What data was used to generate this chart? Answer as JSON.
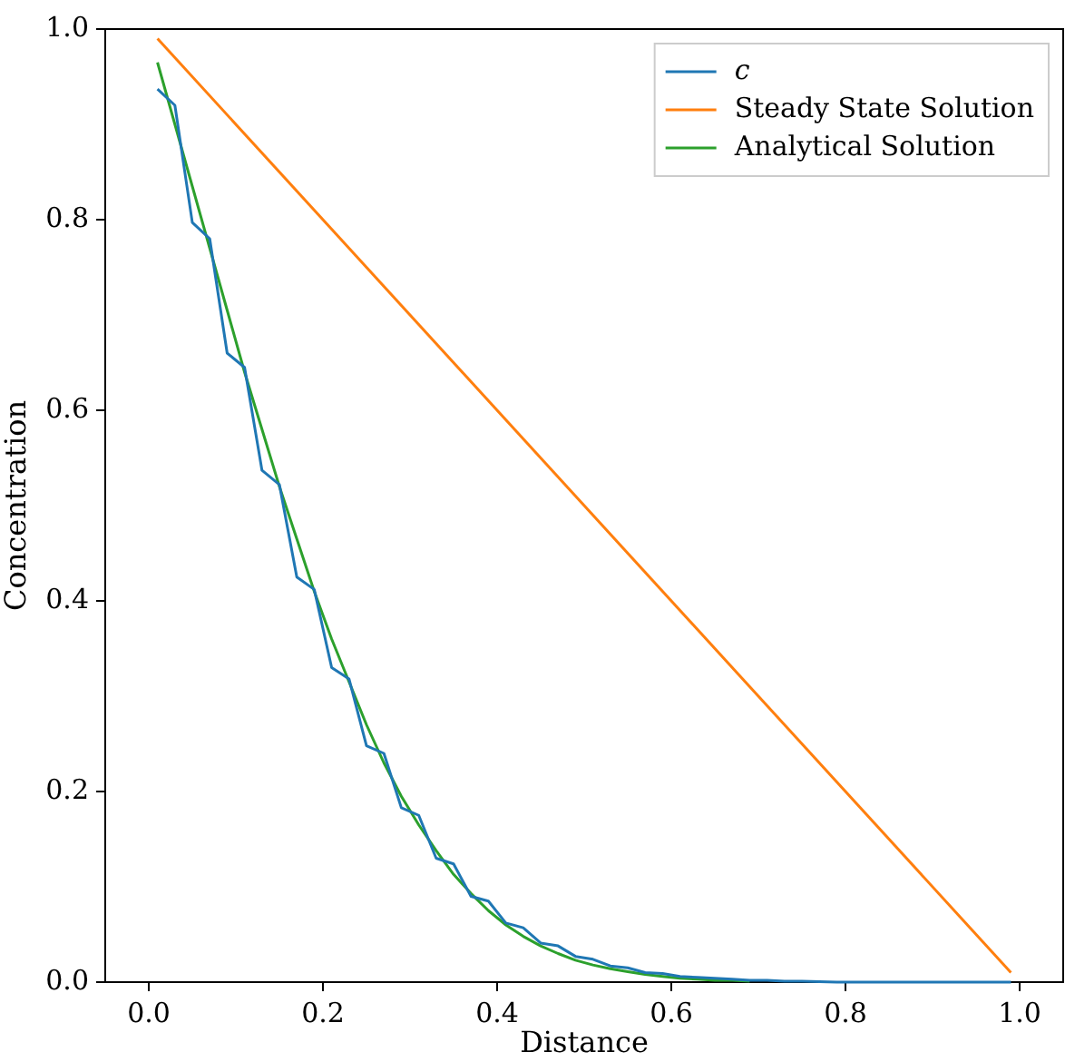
{
  "chart_data": {
    "type": "line",
    "xlabel": "Distance",
    "ylabel": "Concentration",
    "xlim": [
      -0.05,
      1.05
    ],
    "ylim": [
      0,
      1.0
    ],
    "xticks": [
      {
        "value": 0,
        "label": "0.0"
      },
      {
        "value": 0.2,
        "label": "0.2"
      },
      {
        "value": 0.4,
        "label": "0.4"
      },
      {
        "value": 0.6,
        "label": "0.6"
      },
      {
        "value": 0.8,
        "label": "0.8"
      },
      {
        "value": 1,
        "label": "1.0"
      }
    ],
    "yticks": [
      {
        "value": 0,
        "label": "0.0"
      },
      {
        "value": 0.2,
        "label": "0.2"
      },
      {
        "value": 0.4,
        "label": "0.4"
      },
      {
        "value": 0.6,
        "label": "0.6"
      },
      {
        "value": 0.8,
        "label": "0.8"
      },
      {
        "value": 1,
        "label": "1.0"
      }
    ],
    "grid": false,
    "legend": "top right",
    "marker": "none",
    "line_style": "solid",
    "series": [
      {
        "name": "c",
        "color": "#1f77b4",
        "x": [
          0.01,
          0.03,
          0.05,
          0.07,
          0.09,
          0.11,
          0.13,
          0.15,
          0.17,
          0.19,
          0.21,
          0.23,
          0.25,
          0.27,
          0.29,
          0.31,
          0.33,
          0.35,
          0.37,
          0.39,
          0.41,
          0.43,
          0.45,
          0.47,
          0.49,
          0.51,
          0.53,
          0.55,
          0.57,
          0.59,
          0.61,
          0.63,
          0.65,
          0.67,
          0.69,
          0.71,
          0.73,
          0.75,
          0.79,
          0.85,
          0.91,
          0.99
        ],
        "values": [
          0.937,
          0.92,
          0.797,
          0.78,
          0.66,
          0.645,
          0.537,
          0.522,
          0.425,
          0.412,
          0.33,
          0.318,
          0.248,
          0.24,
          0.183,
          0.175,
          0.13,
          0.124,
          0.09,
          0.085,
          0.062,
          0.057,
          0.041,
          0.038,
          0.027,
          0.024,
          0.017,
          0.015,
          0.01,
          0.009,
          0.006,
          0.005,
          0.004,
          0.003,
          0.002,
          0.002,
          0.001,
          0.001,
          0,
          0,
          0,
          0
        ]
      },
      {
        "name": "Steady State Solution",
        "color": "#ff7f0e",
        "x": [
          0.01,
          0.99
        ],
        "values": [
          0.99,
          0.01
        ]
      },
      {
        "name": "Analytical Solution",
        "color": "#2ca02c",
        "x": [
          0.01,
          0.03,
          0.05,
          0.07,
          0.09,
          0.11,
          0.13,
          0.15,
          0.17,
          0.19,
          0.21,
          0.23,
          0.25,
          0.27,
          0.29,
          0.31,
          0.33,
          0.35,
          0.37,
          0.39,
          0.41,
          0.43,
          0.45,
          0.47,
          0.49,
          0.51,
          0.53,
          0.55,
          0.57,
          0.59,
          0.61,
          0.63,
          0.65,
          0.67,
          0.69
        ],
        "values": [
          0.965,
          0.9,
          0.835,
          0.77,
          0.705,
          0.64,
          0.58,
          0.52,
          0.465,
          0.41,
          0.36,
          0.315,
          0.27,
          0.23,
          0.195,
          0.165,
          0.138,
          0.113,
          0.093,
          0.075,
          0.06,
          0.048,
          0.038,
          0.03,
          0.023,
          0.018,
          0.014,
          0.011,
          0.008,
          0.006,
          0.004,
          0.003,
          0.002,
          0.002,
          0.001
        ]
      }
    ]
  }
}
